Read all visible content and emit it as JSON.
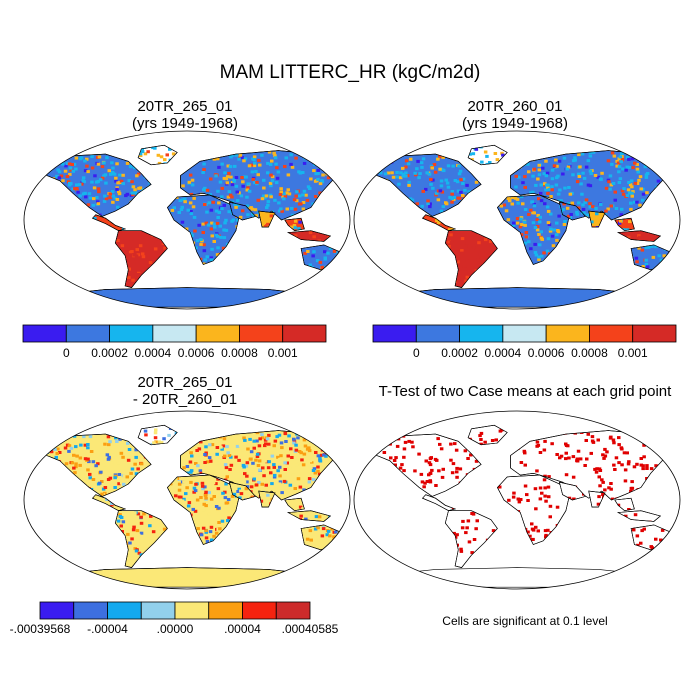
{
  "title": "MAM LITTERC_HR (kgC/m2d)",
  "panels": [
    {
      "name": "panel-case1",
      "title1": "20TR_265_01",
      "title2": "(yrs 1949-1968)"
    },
    {
      "name": "panel-case2",
      "title1": "20TR_260_01",
      "title2": "(yrs 1949-1968)"
    },
    {
      "name": "panel-diff",
      "title1": "20TR_265_01",
      "title2": "- 20TR_260_01"
    },
    {
      "name": "panel-ttest",
      "title1": "T-Test of two Case means at each grid point",
      "title2": ""
    }
  ],
  "colorbars": {
    "case": {
      "colors": [
        "#3a1cf0",
        "#3d78e0",
        "#16b5ee",
        "#c7e8f2",
        "#fbb51d",
        "#f4421b",
        "#d52a26"
      ],
      "labels": [
        "0",
        "0.0002",
        "0.0004",
        "0.0006",
        "0.0008",
        "0.001"
      ]
    },
    "diff": {
      "colors": [
        "#3a1cf0",
        "#3d6fe0",
        "#14a9ee",
        "#92d0ec",
        "#fbe877",
        "#fb9f12",
        "#f5230f",
        "#cd2b2b"
      ],
      "labels": [
        "-.00039568",
        "-.00004",
        ".00000",
        ".00004",
        ".00040585"
      ]
    }
  },
  "significance_note": "Cells are significant at 0.1 level",
  "map_palette": {
    "ocean_fill": "#ffffff",
    "coast": "#000000",
    "sig_color": "#e00000"
  }
}
